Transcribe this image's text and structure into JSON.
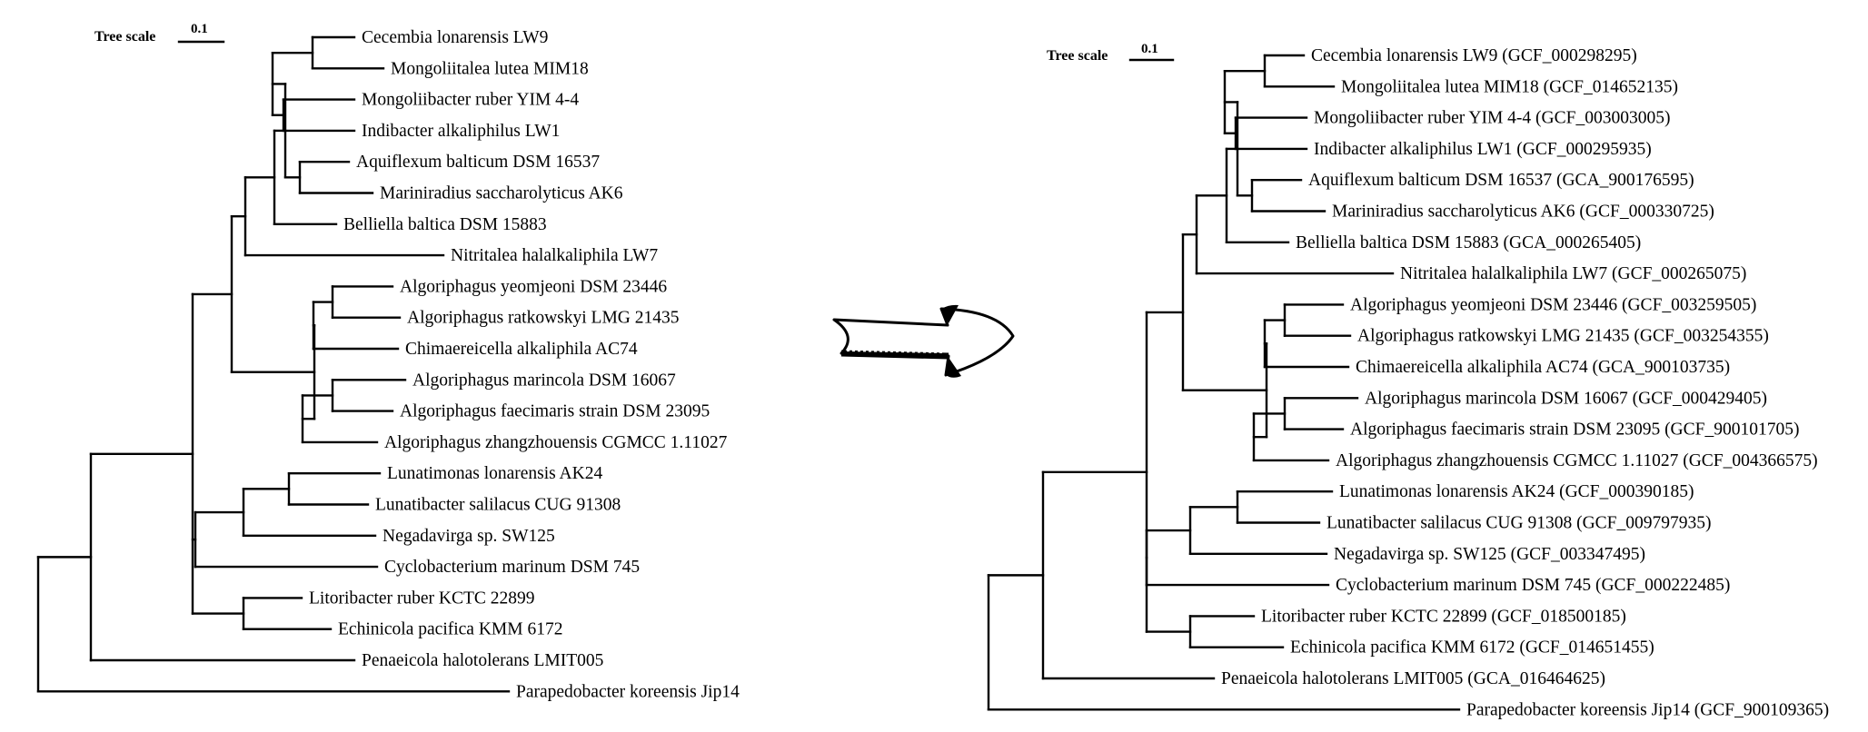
{
  "left_tree": {
    "scale_label": "Tree scale",
    "scale_value": "0.1",
    "leaves": [
      "Cecembia lonarensis LW9",
      "Mongoliitalea lutea MIM18",
      "Mongoliibacter ruber YIM 4-4",
      "Indibacter alkaliphilus LW1",
      "Aquiflexum balticum DSM 16537",
      "Mariniradius saccharolyticus AK6",
      "Belliella baltica DSM 15883",
      "Nitritalea halalkaliphila LW7",
      "Algoriphagus yeomjeoni DSM 23446",
      "Algoriphagus ratkowskyi LMG 21435",
      "Chimaereicella alkaliphila AC74",
      "Algoriphagus marincola DSM 16067",
      "Algoriphagus faecimaris strain DSM 23095",
      "Algoriphagus zhangzhouensis CGMCC 1.11027",
      "Lunatimonas lonarensis AK24",
      "Lunatibacter salilacus CUG 91308",
      "Negadavirga sp. SW125",
      "Cyclobacterium marinum DSM 745",
      "Litoribacter ruber KCTC 22899",
      "Echinicola pacifica KMM 6172",
      "Penaeicola halotolerans LMIT005",
      "Parapedobacter koreensis Jip14"
    ]
  },
  "right_tree": {
    "scale_label": "Tree scale",
    "scale_value": "0.1",
    "leaves": [
      "Cecembia lonarensis LW9 (GCF_000298295)",
      "Mongoliitalea lutea MIM18 (GCF_014652135)",
      "Mongoliibacter ruber YIM 4-4 (GCF_003003005)",
      "Indibacter alkaliphilus LW1 (GCF_000295935)",
      "Aquiflexum balticum DSM 16537 (GCA_900176595)",
      "Mariniradius saccharolyticus AK6 (GCF_000330725)",
      "Belliella baltica DSM 15883 (GCA_000265405)",
      "Nitritalea halalkaliphila LW7 (GCF_000265075)",
      "Algoriphagus yeomjeoni DSM 23446 (GCF_003259505)",
      "Algoriphagus ratkowskyi LMG 21435 (GCF_003254355)",
      "Chimaereicella alkaliphila AC74 (GCA_900103735)",
      "Algoriphagus marincola DSM 16067 (GCF_000429405)",
      "Algoriphagus faecimaris strain DSM 23095 (GCF_900101705)",
      "Algoriphagus zhangzhouensis CGMCC 1.11027 (GCF_004366575)",
      "Lunatimonas lonarensis AK24 (GCF_000390185)",
      "Lunatibacter salilacus CUG 91308 (GCF_009797935)",
      "Negadavirga sp. SW125 (GCF_003347495)",
      "Cyclobacterium marinum DSM 745 (GCF_000222485)",
      "Litoribacter ruber KCTC 22899 (GCF_018500185)",
      "Echinicola pacifica KMM 6172 (GCF_014651455)",
      "Penaeicola halotolerans LMIT005 (GCA_016464625)",
      "Parapedobacter koreensis Jip14 (GCF_900109365)"
    ]
  },
  "arrow": {
    "icon": "right-arrow-icon"
  }
}
